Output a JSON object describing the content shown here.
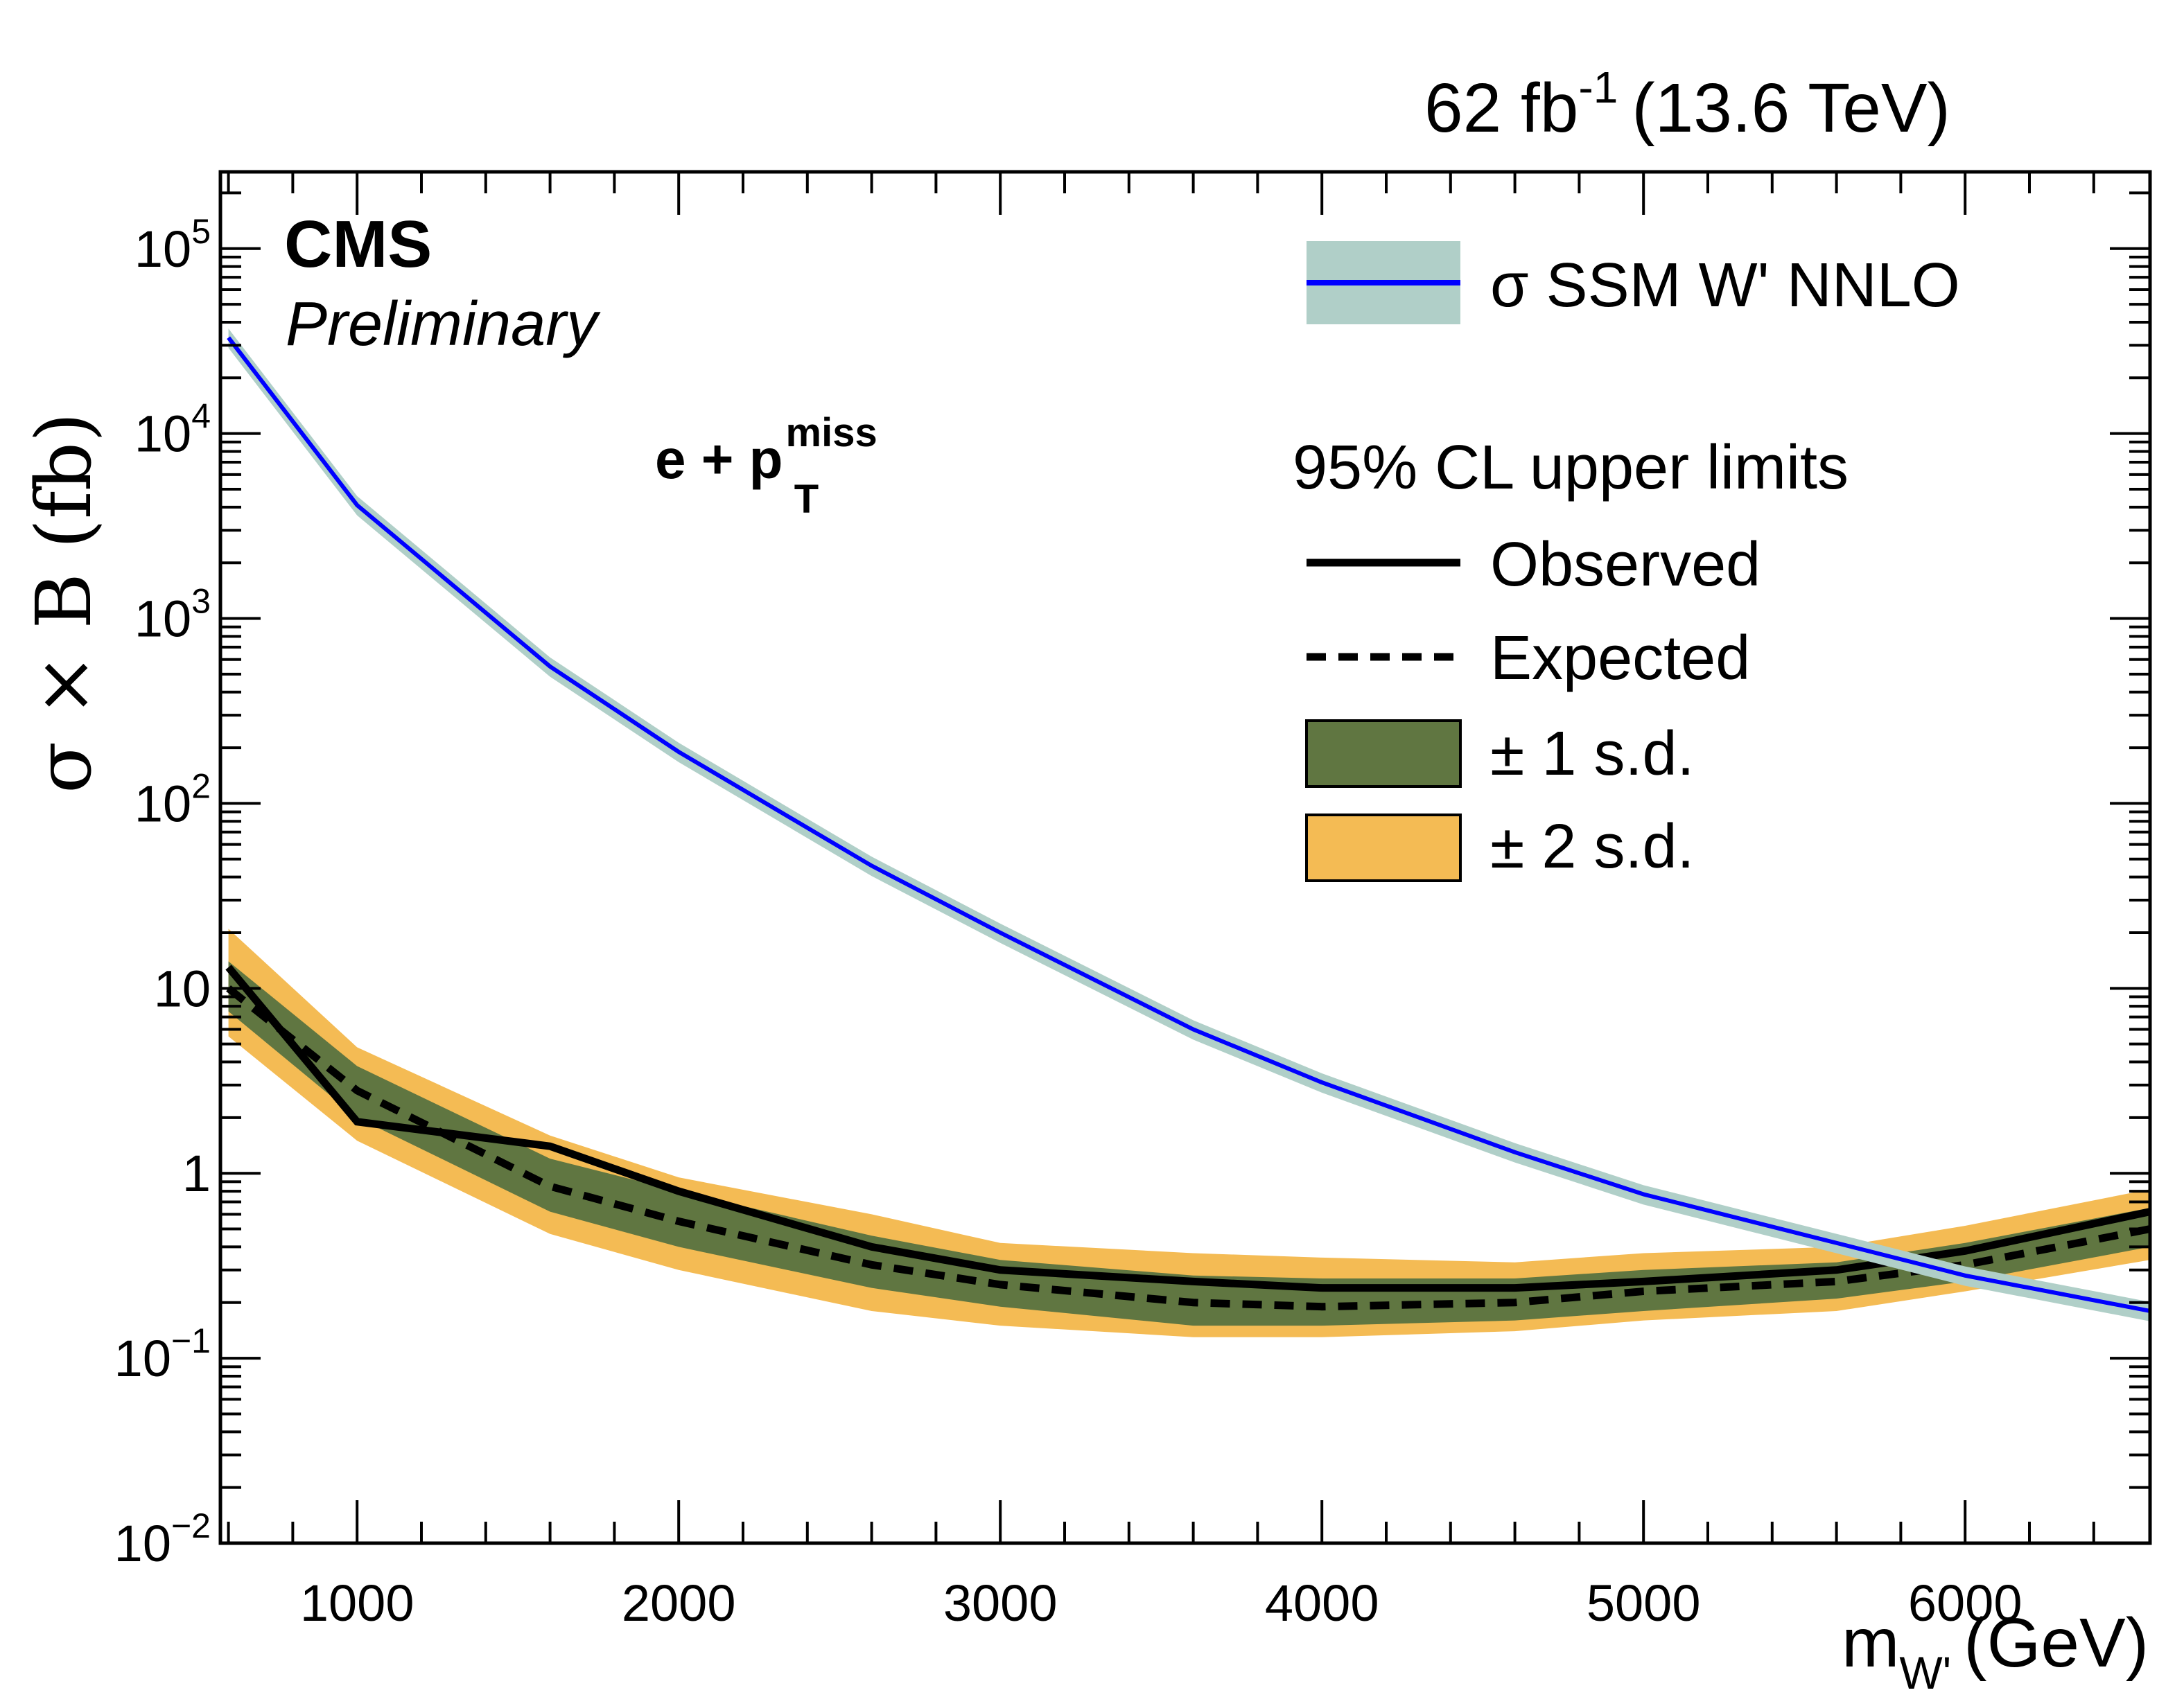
{
  "chart_data": {
    "type": "line",
    "title": "",
    "lumi_label": "62 fb",
    "lumi_sup": "-1",
    "energy_label": "(13.6 TeV)",
    "experiment": "CMS",
    "status": "Preliminary",
    "channel_label": "e + p",
    "channel_sup": "miss",
    "channel_sub": "T",
    "xlabel": "m",
    "xlabel_sub": "W'",
    "xlabel_unit": "(GeV)",
    "ylabel": "σ × B  (fb)",
    "xlim": [
      575,
      6575
    ],
    "ylim": [
      0.01,
      260000
    ],
    "yscale": "log",
    "x_ticks": [
      1000,
      2000,
      3000,
      4000,
      5000,
      6000
    ],
    "x_tick_labels": [
      "1000",
      "2000",
      "3000",
      "4000",
      "5000",
      "6000"
    ],
    "y_ticks": [
      0.01,
      0.1,
      1,
      10,
      100,
      1000,
      10000,
      100000
    ],
    "y_tick_labels": [
      {
        "base": "10",
        "exp": "−2"
      },
      {
        "base": "10",
        "exp": "−1"
      },
      {
        "base": "1",
        "exp": ""
      },
      {
        "base": "10",
        "exp": ""
      },
      {
        "base": "10",
        "exp": "2"
      },
      {
        "base": "10",
        "exp": "3"
      },
      {
        "base": "10",
        "exp": "4"
      },
      {
        "base": "10",
        "exp": "5"
      }
    ],
    "x": [
      600,
      1000,
      1600,
      2000,
      2600,
      3000,
      3600,
      4000,
      4600,
      5000,
      5600,
      6000,
      6600
    ],
    "series": [
      {
        "name": "σ SSM W' NNLO",
        "color": "#0000ff",
        "band_color": "#b0cfc8",
        "values": [
          33000,
          4100,
          550,
          190,
          46,
          20,
          6.0,
          3.1,
          1.3,
          0.77,
          0.42,
          0.28,
          0.18
        ],
        "band_rel": 0.12
      },
      {
        "name": "Observed",
        "color": "#000000",
        "style": "solid",
        "values": [
          13,
          1.9,
          1.4,
          0.8,
          0.4,
          0.3,
          0.26,
          0.24,
          0.24,
          0.26,
          0.3,
          0.38,
          0.62
        ]
      },
      {
        "name": "Expected",
        "color": "#000000",
        "style": "dashed",
        "values": [
          10,
          2.8,
          0.85,
          0.55,
          0.32,
          0.25,
          0.2,
          0.19,
          0.2,
          0.23,
          0.26,
          0.32,
          0.5
        ]
      },
      {
        "name": "± 1 s.d.",
        "color": "#607641",
        "lower": [
          7.5,
          2.0,
          0.62,
          0.4,
          0.24,
          0.19,
          0.15,
          0.15,
          0.16,
          0.18,
          0.21,
          0.26,
          0.4
        ],
        "upper": [
          14,
          3.8,
          1.2,
          0.8,
          0.46,
          0.34,
          0.28,
          0.27,
          0.27,
          0.3,
          0.33,
          0.42,
          0.65
        ]
      },
      {
        "name": "± 2 s.d.",
        "color": "#f4bb54",
        "lower": [
          5.5,
          1.5,
          0.47,
          0.3,
          0.18,
          0.15,
          0.13,
          0.13,
          0.14,
          0.16,
          0.18,
          0.23,
          0.34
        ],
        "upper": [
          21,
          4.8,
          1.6,
          0.95,
          0.6,
          0.42,
          0.37,
          0.35,
          0.33,
          0.37,
          0.4,
          0.52,
          0.82
        ]
      }
    ],
    "legend": {
      "placement": "top-right",
      "heading": "95% CL upper limits",
      "entries": [
        "σ SSM W' NNLO",
        "Observed",
        "Expected",
        "± 1 s.d.",
        "± 2 s.d."
      ]
    },
    "grid": false
  }
}
